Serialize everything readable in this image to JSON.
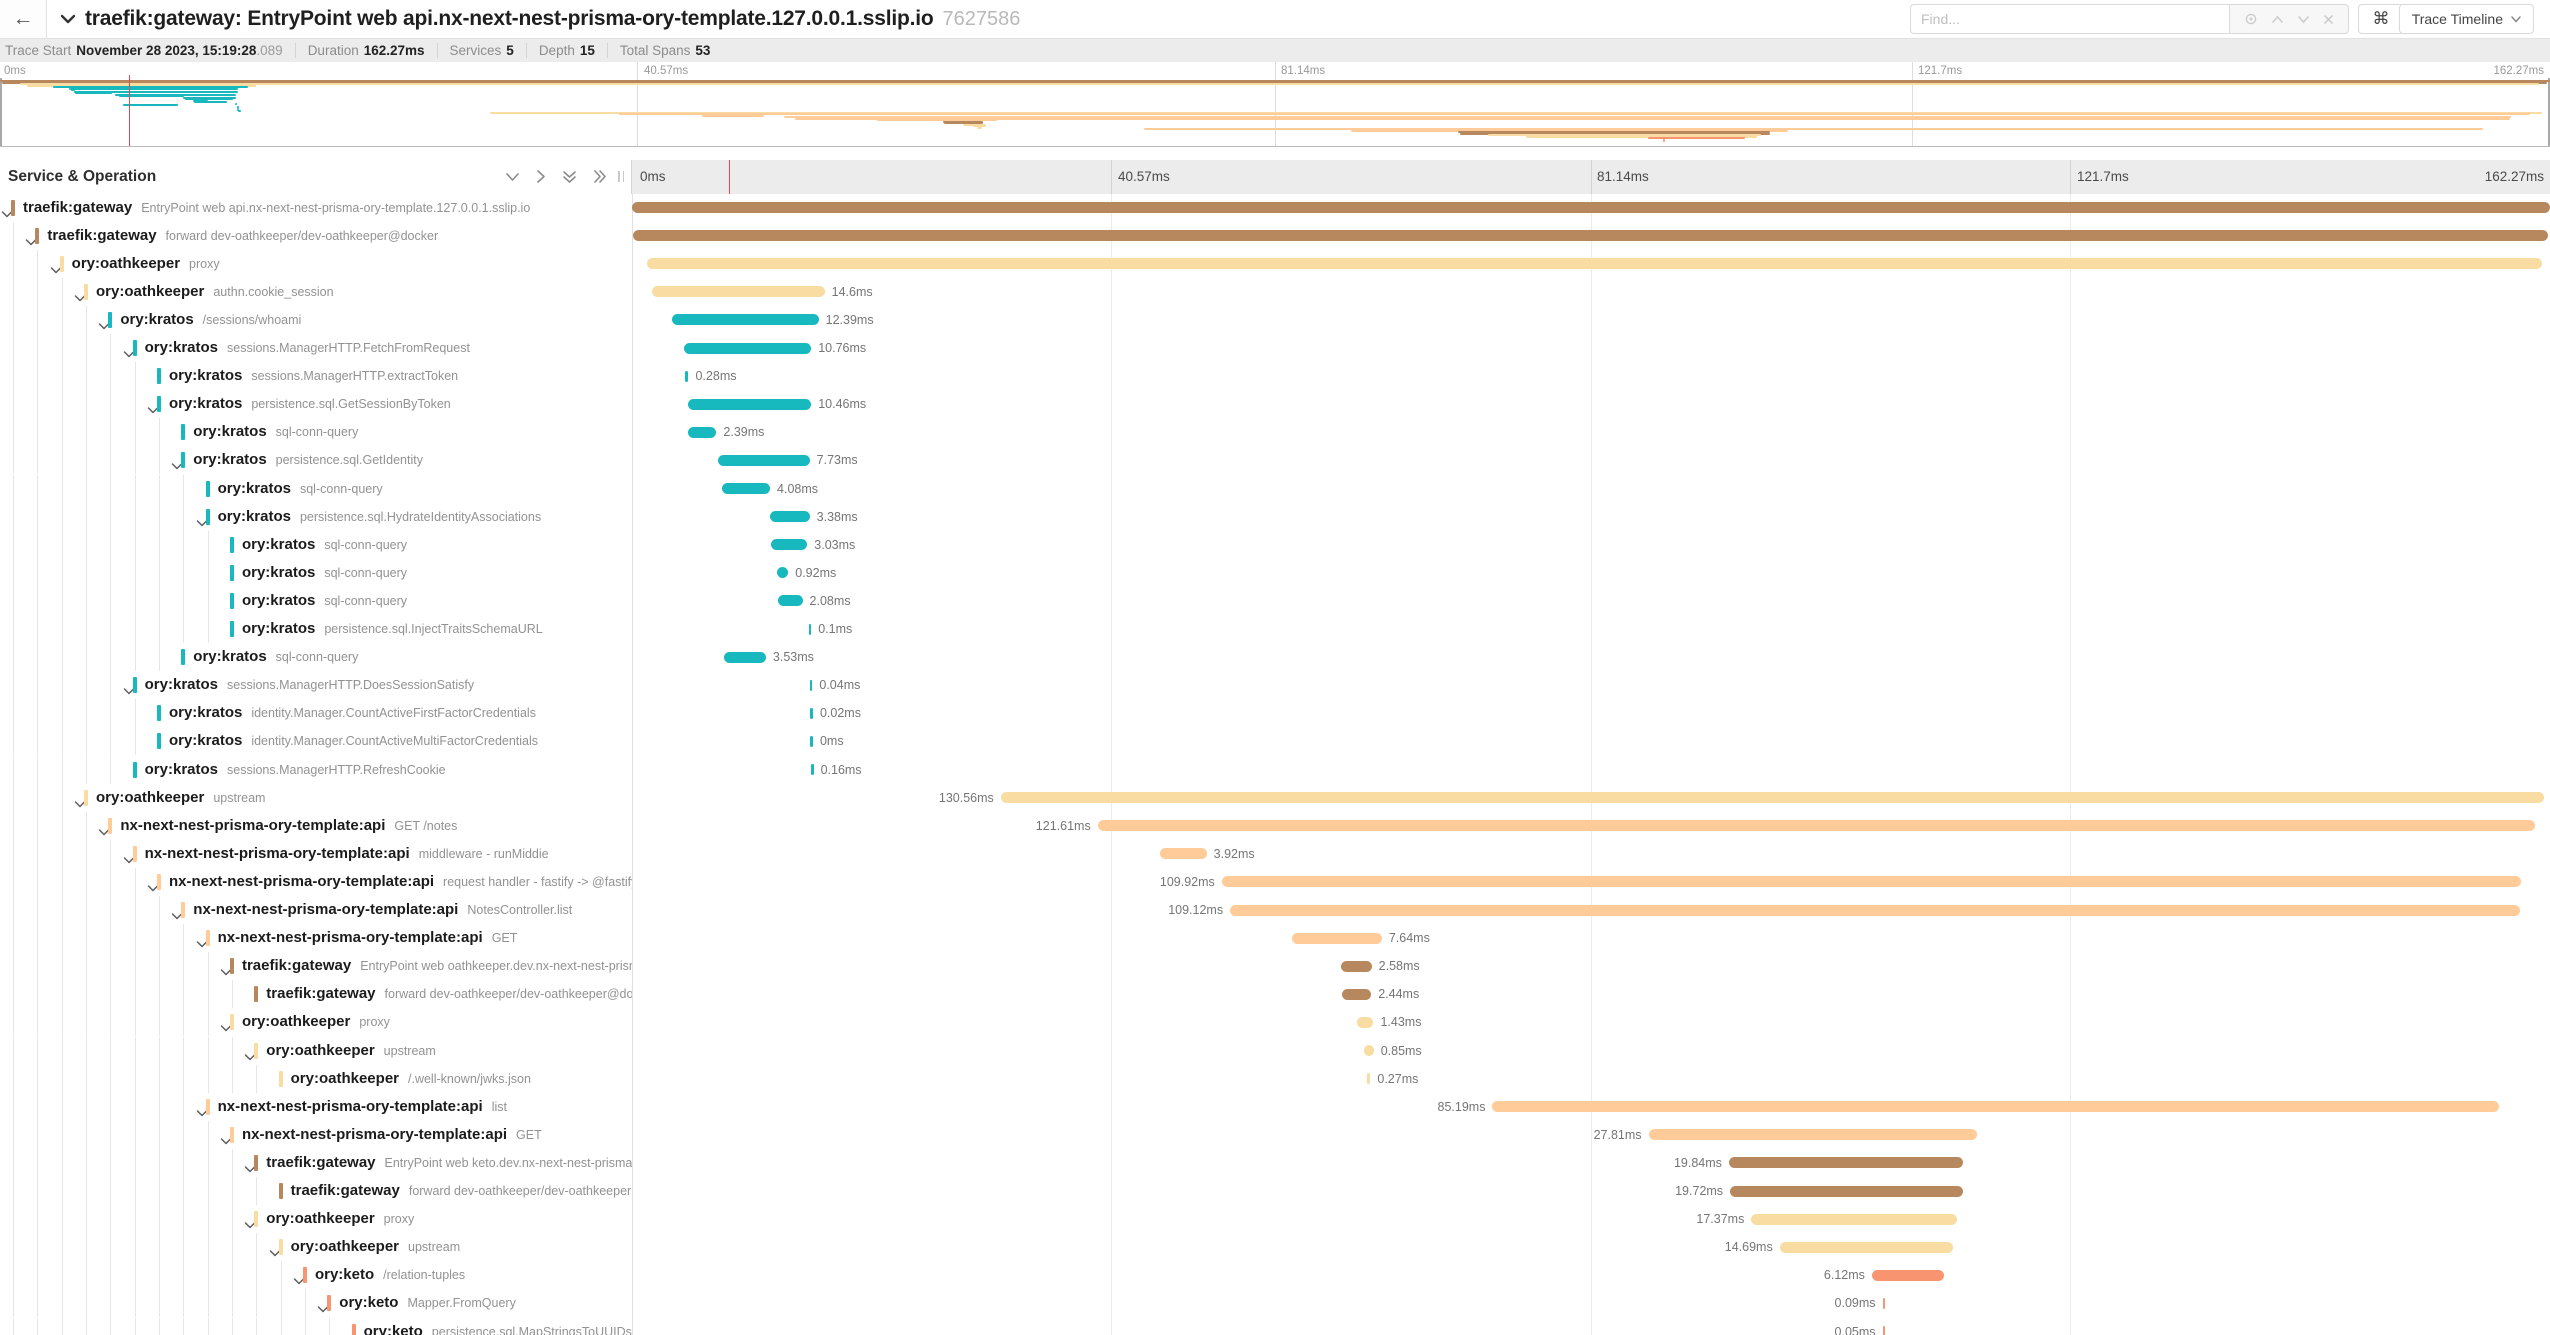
{
  "topbar": {
    "title": "traefik:gateway: EntryPoint web api.nx-next-nest-prisma-ory-template.127.0.0.1.sslip.io",
    "trace_id": "7627586",
    "find_placeholder": "Find...",
    "shortcut_key": "⌘",
    "view_label": "Trace Timeline"
  },
  "summary": {
    "items": [
      {
        "label": "Trace Start",
        "value": "November 28 2023, 15:19:28",
        "suffix": ".089"
      },
      {
        "label": "Duration",
        "value": "162.27ms",
        "suffix": ""
      },
      {
        "label": "Services",
        "value": "5",
        "suffix": ""
      },
      {
        "label": "Depth",
        "value": "15",
        "suffix": ""
      },
      {
        "label": "Total Spans",
        "value": "53",
        "suffix": ""
      }
    ]
  },
  "ticks": [
    "0ms",
    "40.57ms",
    "81.14ms",
    "121.7ms",
    "162.27ms"
  ],
  "section": {
    "title": "Service & Operation"
  },
  "total_ms": 162.27,
  "cursor_ms": 8.2,
  "colors": {
    "traefik": "#B7885E",
    "oathkeeper": "#F8DCA1",
    "kratos": "#17B8BE",
    "api": "#FFCB99",
    "keto": "#F89570"
  },
  "spans": [
    {
      "svc": "traefik:gateway",
      "op": "EntryPoint web api.nx-next-nest-prisma-ory-template.127.0.0.1.sslip.io",
      "d": 0,
      "c": "traefik",
      "ch": true,
      "s": 0,
      "dur": 162.27,
      "lbl": "",
      "side": "none"
    },
    {
      "svc": "traefik:gateway",
      "op": "forward dev-oathkeeper/dev-oathkeeper@docker",
      "d": 1,
      "c": "traefik",
      "ch": true,
      "s": 0.12,
      "dur": 161.95,
      "lbl": "",
      "side": "none"
    },
    {
      "svc": "ory:oathkeeper",
      "op": "proxy",
      "d": 2,
      "c": "oathkeeper",
      "ch": true,
      "s": 1.3,
      "dur": 160.3,
      "lbl": "",
      "side": "none"
    },
    {
      "svc": "ory:oathkeeper",
      "op": "authn.cookie_session",
      "d": 3,
      "c": "oathkeeper",
      "ch": true,
      "s": 1.7,
      "dur": 14.6,
      "lbl": "14.6ms",
      "side": "r"
    },
    {
      "svc": "ory:kratos",
      "op": "/sessions/whoami",
      "d": 4,
      "c": "kratos",
      "ch": true,
      "s": 3.4,
      "dur": 12.39,
      "lbl": "12.39ms",
      "side": "r"
    },
    {
      "svc": "ory:kratos",
      "op": "sessions.ManagerHTTP.FetchFromRequest",
      "d": 5,
      "c": "kratos",
      "ch": true,
      "s": 4.4,
      "dur": 10.76,
      "lbl": "10.76ms",
      "side": "r"
    },
    {
      "svc": "ory:kratos",
      "op": "sessions.ManagerHTTP.extractToken",
      "d": 6,
      "c": "kratos",
      "ch": false,
      "s": 4.5,
      "dur": 0.28,
      "lbl": "0.28ms",
      "side": "r"
    },
    {
      "svc": "ory:kratos",
      "op": "persistence.sql.GetSessionByToken",
      "d": 6,
      "c": "kratos",
      "ch": true,
      "s": 4.7,
      "dur": 10.46,
      "lbl": "10.46ms",
      "side": "r"
    },
    {
      "svc": "ory:kratos",
      "op": "sql-conn-query",
      "d": 7,
      "c": "kratos",
      "ch": false,
      "s": 4.75,
      "dur": 2.39,
      "lbl": "2.39ms",
      "side": "r"
    },
    {
      "svc": "ory:kratos",
      "op": "persistence.sql.GetIdentity",
      "d": 7,
      "c": "kratos",
      "ch": true,
      "s": 7.3,
      "dur": 7.73,
      "lbl": "7.73ms",
      "side": "r"
    },
    {
      "svc": "ory:kratos",
      "op": "sql-conn-query",
      "d": 8,
      "c": "kratos",
      "ch": false,
      "s": 7.6,
      "dur": 4.08,
      "lbl": "4.08ms",
      "side": "r"
    },
    {
      "svc": "ory:kratos",
      "op": "persistence.sql.HydrateIdentityAssociations",
      "d": 8,
      "c": "kratos",
      "ch": true,
      "s": 11.65,
      "dur": 3.38,
      "lbl": "3.38ms",
      "side": "r"
    },
    {
      "svc": "ory:kratos",
      "op": "sql-conn-query",
      "d": 9,
      "c": "kratos",
      "ch": false,
      "s": 11.8,
      "dur": 3.03,
      "lbl": "3.03ms",
      "side": "r"
    },
    {
      "svc": "ory:kratos",
      "op": "sql-conn-query",
      "d": 9,
      "c": "kratos",
      "ch": false,
      "s": 12.3,
      "dur": 0.92,
      "lbl": "0.92ms",
      "side": "r"
    },
    {
      "svc": "ory:kratos",
      "op": "sql-conn-query",
      "d": 9,
      "c": "kratos",
      "ch": false,
      "s": 12.35,
      "dur": 2.08,
      "lbl": "2.08ms",
      "side": "r"
    },
    {
      "svc": "ory:kratos",
      "op": "persistence.sql.InjectTraitsSchemaURL",
      "d": 9,
      "c": "kratos",
      "ch": false,
      "s": 14.95,
      "dur": 0.1,
      "lbl": "0.1ms",
      "side": "r"
    },
    {
      "svc": "ory:kratos",
      "op": "sql-conn-query",
      "d": 7,
      "c": "kratos",
      "ch": false,
      "s": 7.8,
      "dur": 3.53,
      "lbl": "3.53ms",
      "side": "r"
    },
    {
      "svc": "ory:kratos",
      "op": "sessions.ManagerHTTP.DoesSessionSatisfy",
      "d": 5,
      "c": "kratos",
      "ch": true,
      "s": 15.05,
      "dur": 0.04,
      "lbl": "0.04ms",
      "side": "r"
    },
    {
      "svc": "ory:kratos",
      "op": "identity.Manager.CountActiveFirstFactorCredentials",
      "d": 6,
      "c": "kratos",
      "ch": false,
      "s": 15.1,
      "dur": 0.02,
      "lbl": "0.02ms",
      "side": "r"
    },
    {
      "svc": "ory:kratos",
      "op": "identity.Manager.CountActiveMultiFactorCredentials",
      "d": 6,
      "c": "kratos",
      "ch": false,
      "s": 15.1,
      "dur": 0,
      "lbl": "0ms",
      "side": "r"
    },
    {
      "svc": "ory:kratos",
      "op": "sessions.ManagerHTTP.RefreshCookie",
      "d": 5,
      "c": "kratos",
      "ch": false,
      "s": 15.15,
      "dur": 0.16,
      "lbl": "0.16ms",
      "side": "r"
    },
    {
      "svc": "ory:oathkeeper",
      "op": "upstream",
      "d": 3,
      "c": "oathkeeper",
      "ch": true,
      "s": 31.2,
      "dur": 130.56,
      "lbl": "130.56ms",
      "side": "l"
    },
    {
      "svc": "nx-next-nest-prisma-ory-template:api",
      "op": "GET /notes",
      "d": 4,
      "c": "api",
      "ch": true,
      "s": 39.4,
      "dur": 121.61,
      "lbl": "121.61ms",
      "side": "l"
    },
    {
      "svc": "nx-next-nest-prisma-ory-template:api",
      "op": "middleware - runMiddie",
      "d": 5,
      "c": "api",
      "ch": true,
      "s": 44.7,
      "dur": 3.92,
      "lbl": "3.92ms",
      "side": "r"
    },
    {
      "svc": "nx-next-nest-prisma-ory-template:api",
      "op": "request handler - fastify -> @fastify/…",
      "d": 6,
      "c": "api",
      "ch": true,
      "s": 49.9,
      "dur": 109.92,
      "lbl": "109.92ms",
      "side": "l"
    },
    {
      "svc": "nx-next-nest-prisma-ory-template:api",
      "op": "NotesController.list",
      "d": 7,
      "c": "api",
      "ch": true,
      "s": 50.6,
      "dur": 109.12,
      "lbl": "109.12ms",
      "side": "l"
    },
    {
      "svc": "nx-next-nest-prisma-ory-template:api",
      "op": "GET",
      "d": 8,
      "c": "api",
      "ch": true,
      "s": 55.8,
      "dur": 7.64,
      "lbl": "7.64ms",
      "side": "r"
    },
    {
      "svc": "traefik:gateway",
      "op": "EntryPoint web oathkeeper.dev.nx-next-nest-prisma…",
      "d": 9,
      "c": "traefik",
      "ch": true,
      "s": 60.0,
      "dur": 2.58,
      "lbl": "2.58ms",
      "side": "r"
    },
    {
      "svc": "traefik:gateway",
      "op": "forward dev-oathkeeper/dev-oathkeeper@docker",
      "d": 10,
      "c": "traefik",
      "ch": false,
      "s": 60.1,
      "dur": 2.44,
      "lbl": "2.44ms",
      "side": "r"
    },
    {
      "svc": "ory:oathkeeper",
      "op": "proxy",
      "d": 9,
      "c": "oathkeeper",
      "ch": true,
      "s": 61.3,
      "dur": 1.43,
      "lbl": "1.43ms",
      "side": "r"
    },
    {
      "svc": "ory:oathkeeper",
      "op": "upstream",
      "d": 10,
      "c": "oathkeeper",
      "ch": true,
      "s": 61.9,
      "dur": 0.85,
      "lbl": "0.85ms",
      "side": "r"
    },
    {
      "svc": "ory:oathkeeper",
      "op": "/.well-known/jwks.json",
      "d": 11,
      "c": "oathkeeper",
      "ch": false,
      "s": 62.2,
      "dur": 0.27,
      "lbl": "0.27ms",
      "side": "r"
    },
    {
      "svc": "nx-next-nest-prisma-ory-template:api",
      "op": "list",
      "d": 8,
      "c": "api",
      "ch": true,
      "s": 72.8,
      "dur": 85.19,
      "lbl": "85.19ms",
      "side": "l"
    },
    {
      "svc": "nx-next-nest-prisma-ory-template:api",
      "op": "GET",
      "d": 9,
      "c": "api",
      "ch": true,
      "s": 86.0,
      "dur": 27.81,
      "lbl": "27.81ms",
      "side": "l"
    },
    {
      "svc": "traefik:gateway",
      "op": "EntryPoint web keto.dev.nx-next-nest-prisma-o…",
      "d": 10,
      "c": "traefik",
      "ch": true,
      "s": 92.8,
      "dur": 19.84,
      "lbl": "19.84ms",
      "side": "l"
    },
    {
      "svc": "traefik:gateway",
      "op": "forward dev-oathkeeper/dev-oathkeeper@…",
      "d": 11,
      "c": "traefik",
      "ch": false,
      "s": 92.9,
      "dur": 19.72,
      "lbl": "19.72ms",
      "side": "l"
    },
    {
      "svc": "ory:oathkeeper",
      "op": "proxy",
      "d": 10,
      "c": "oathkeeper",
      "ch": true,
      "s": 94.7,
      "dur": 17.37,
      "lbl": "17.37ms",
      "side": "l"
    },
    {
      "svc": "ory:oathkeeper",
      "op": "upstream",
      "d": 11,
      "c": "oathkeeper",
      "ch": true,
      "s": 97.1,
      "dur": 14.69,
      "lbl": "14.69ms",
      "side": "l"
    },
    {
      "svc": "ory:keto",
      "op": "/relation-tuples",
      "d": 12,
      "c": "keto",
      "ch": true,
      "s": 104.9,
      "dur": 6.12,
      "lbl": "6.12ms",
      "side": "l"
    },
    {
      "svc": "ory:keto",
      "op": "Mapper.FromQuery",
      "d": 13,
      "c": "keto",
      "ch": true,
      "s": 105.8,
      "dur": 0.09,
      "lbl": "0.09ms",
      "side": "l"
    },
    {
      "svc": "ory:keto",
      "op": "persistence.sql.MapStringsToUUIDsR…",
      "d": 14,
      "c": "keto",
      "ch": false,
      "s": 105.8,
      "dur": 0.05,
      "lbl": "0.05ms",
      "side": "l"
    }
  ]
}
